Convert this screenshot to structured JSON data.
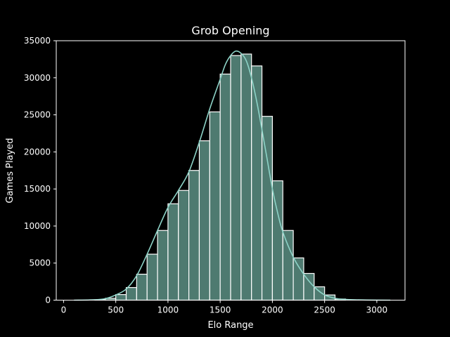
{
  "chart_data": {
    "type": "histogram",
    "title": "Grob Opening",
    "xlabel": "Elo Range",
    "ylabel": "Games Played",
    "xlim": [
      -70,
      3270
    ],
    "ylim": [
      0,
      35000
    ],
    "xticks": [
      0,
      500,
      1000,
      1500,
      2000,
      2500,
      3000
    ],
    "yticks": [
      0,
      5000,
      10000,
      15000,
      20000,
      25000,
      30000,
      35000
    ],
    "bin_width": 100,
    "bins": [
      {
        "x0": 300,
        "x1": 400,
        "count": 50
      },
      {
        "x0": 400,
        "x1": 500,
        "count": 250
      },
      {
        "x0": 500,
        "x1": 600,
        "count": 750
      },
      {
        "x0": 600,
        "x1": 700,
        "count": 1700
      },
      {
        "x0": 700,
        "x1": 800,
        "count": 3500
      },
      {
        "x0": 800,
        "x1": 900,
        "count": 6200
      },
      {
        "x0": 900,
        "x1": 1000,
        "count": 9400
      },
      {
        "x0": 1000,
        "x1": 1100,
        "count": 13000
      },
      {
        "x0": 1100,
        "x1": 1200,
        "count": 14800
      },
      {
        "x0": 1200,
        "x1": 1300,
        "count": 17500
      },
      {
        "x0": 1300,
        "x1": 1400,
        "count": 21500
      },
      {
        "x0": 1400,
        "x1": 1500,
        "count": 25400
      },
      {
        "x0": 1500,
        "x1": 1600,
        "count": 30500
      },
      {
        "x0": 1600,
        "x1": 1700,
        "count": 33000
      },
      {
        "x0": 1700,
        "x1": 1800,
        "count": 33200
      },
      {
        "x0": 1800,
        "x1": 1900,
        "count": 31600
      },
      {
        "x0": 1900,
        "x1": 2000,
        "count": 24800
      },
      {
        "x0": 2000,
        "x1": 2100,
        "count": 16100
      },
      {
        "x0": 2100,
        "x1": 2200,
        "count": 9400
      },
      {
        "x0": 2200,
        "x1": 2300,
        "count": 5700
      },
      {
        "x0": 2300,
        "x1": 2400,
        "count": 3600
      },
      {
        "x0": 2400,
        "x1": 2500,
        "count": 1800
      },
      {
        "x0": 2500,
        "x1": 2600,
        "count": 700
      },
      {
        "x0": 2600,
        "x1": 2700,
        "count": 150
      }
    ],
    "kde": {
      "x": [
        100,
        300,
        400,
        500,
        600,
        700,
        800,
        900,
        1000,
        1100,
        1200,
        1300,
        1400,
        1500,
        1550,
        1600,
        1650,
        1700,
        1750,
        1800,
        1850,
        1900,
        1950,
        2000,
        2050,
        2100,
        2200,
        2300,
        2400,
        2500,
        2600,
        2700,
        2800,
        3000,
        3130
      ],
      "y": [
        0,
        50,
        200,
        700,
        1500,
        3300,
        6200,
        9400,
        12500,
        14800,
        17300,
        21300,
        25800,
        29800,
        31800,
        33000,
        33600,
        33300,
        32300,
        30000,
        26800,
        23000,
        19000,
        15000,
        11800,
        9200,
        5800,
        3500,
        1800,
        700,
        250,
        100,
        40,
        10,
        0
      ]
    },
    "bar_color": "#4e7a70",
    "edge_color": "#ffffff",
    "kde_color": "#8dd3c7",
    "background": "#000000",
    "grid": false
  }
}
